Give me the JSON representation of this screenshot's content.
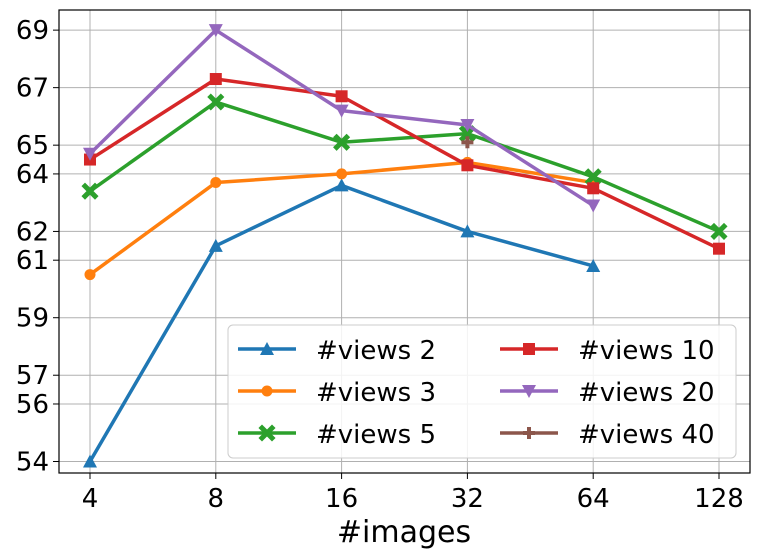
{
  "chart_data": {
    "type": "line",
    "x": [
      4,
      8,
      16,
      32,
      64,
      128
    ],
    "x_scale": "log2",
    "xlabel": "#images",
    "ylabel": "",
    "ylim": [
      53.6,
      69.7
    ],
    "x_ticks": [
      "4",
      "8",
      "16",
      "32",
      "64",
      "128"
    ],
    "y_ticks": [
      "54",
      "56",
      "57",
      "59",
      "61",
      "62",
      "64",
      "65",
      "67",
      "69"
    ],
    "grid": true,
    "legend_position": "bottom-right",
    "legend_columns": 2,
    "series": [
      {
        "name": "#views 2",
        "color": "#1f77b4",
        "marker": "triangle-up",
        "x": [
          4,
          8,
          16,
          32,
          64
        ],
        "values": [
          54.0,
          61.5,
          63.6,
          62.0,
          60.8
        ]
      },
      {
        "name": "#views 3",
        "color": "#ff7f0e",
        "marker": "circle",
        "x": [
          4,
          8,
          16,
          32,
          64
        ],
        "values": [
          60.5,
          63.7,
          64.0,
          64.4,
          63.7
        ]
      },
      {
        "name": "#views 5",
        "color": "#2ca02c",
        "marker": "x-filled",
        "x": [
          4,
          8,
          16,
          32,
          64,
          128
        ],
        "values": [
          63.4,
          66.5,
          65.1,
          65.4,
          63.9,
          62.0
        ]
      },
      {
        "name": "#views 10",
        "color": "#d62728",
        "marker": "square",
        "x": [
          4,
          8,
          16,
          32,
          64,
          128
        ],
        "values": [
          64.5,
          67.3,
          66.7,
          64.3,
          63.5,
          61.4
        ]
      },
      {
        "name": "#views 20",
        "color": "#9467bd",
        "marker": "triangle-down",
        "x": [
          4,
          8,
          16,
          32,
          64
        ],
        "values": [
          64.7,
          69.0,
          66.2,
          65.7,
          62.9
        ]
      },
      {
        "name": "#views 40",
        "color": "#8c564b",
        "marker": "plus",
        "x": [
          32
        ],
        "values": [
          65.1
        ]
      }
    ]
  }
}
